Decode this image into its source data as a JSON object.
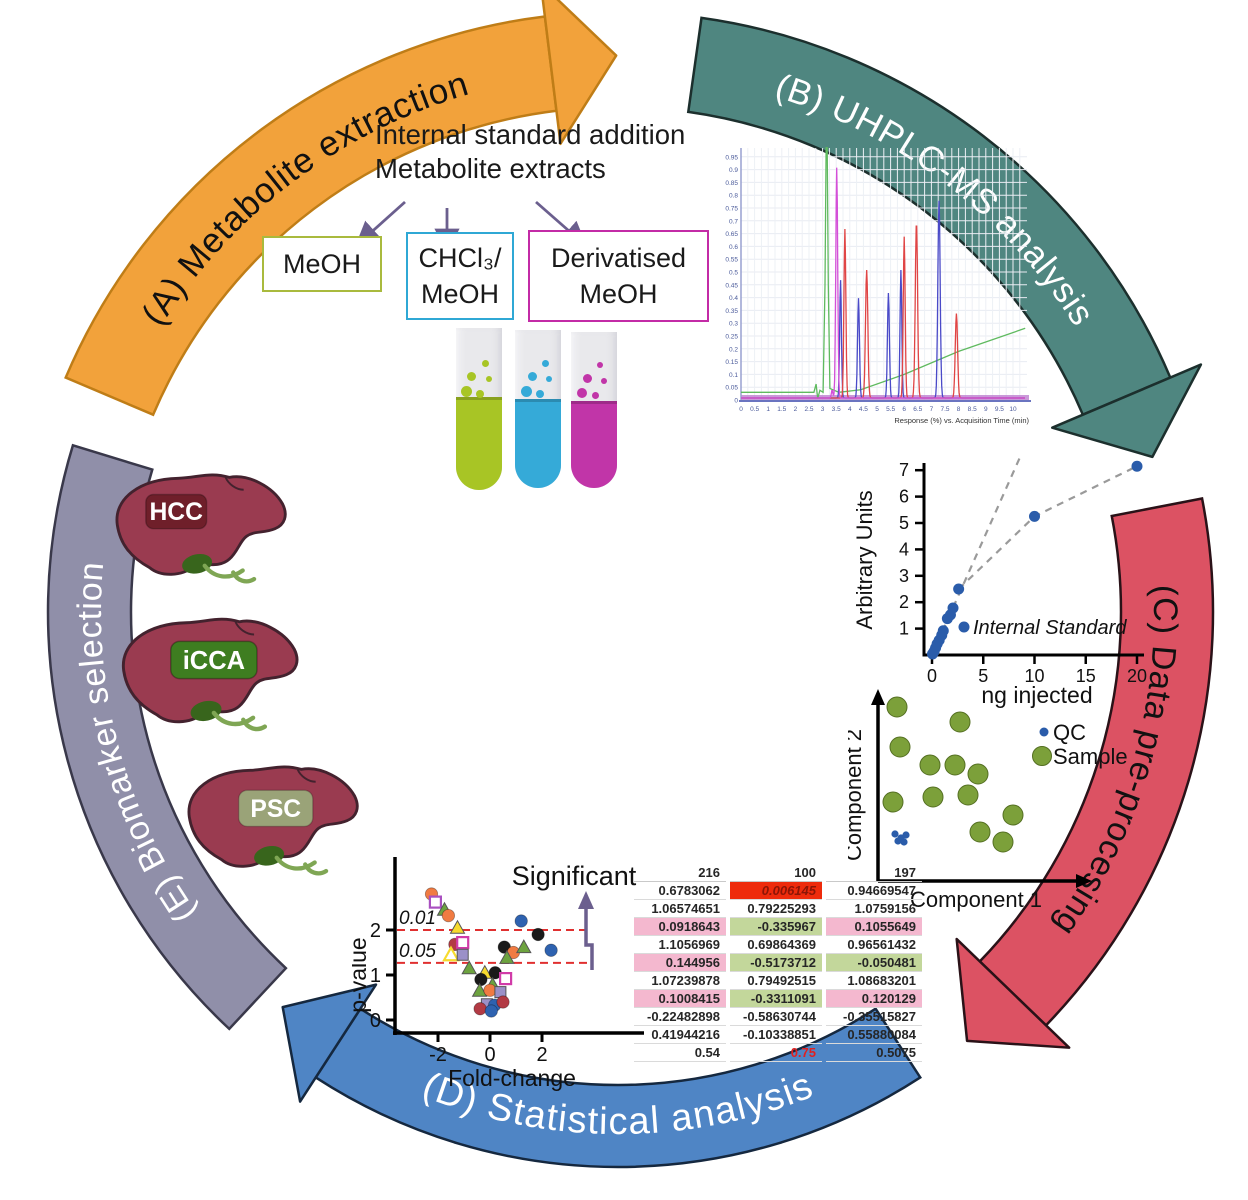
{
  "arcs": {
    "a": {
      "label": "(A) Metabolite extraction",
      "fill": "#f2a23b",
      "stroke": "#bf7d17",
      "text_color": "#111111"
    },
    "b": {
      "label": "(B) UHPLC-MS analysis",
      "fill": "#4f8680",
      "stroke": "#1c2f2d",
      "text_color": "#ffffff"
    },
    "c": {
      "label": "(C) Data pre-procesing",
      "fill": "#dc5263",
      "stroke": "#2a1218",
      "text_color": "#111111"
    },
    "d": {
      "label": "(D) Statistical analysis",
      "fill": "#4f85c5",
      "stroke": "#15283f",
      "text_color": "#ffffff"
    },
    "e": {
      "label": "(E) Biomarker selection",
      "fill": "#908fa9",
      "stroke": "#39384a",
      "text_color": "#ffffff"
    }
  },
  "extraction": {
    "heading_line1": "Internal standard addition",
    "heading_line2": "Metabolite extracts",
    "arrow_color": "#6b5f8e",
    "boxes": [
      {
        "label": "MeOH",
        "label2": "",
        "color": "#a9ba3d"
      },
      {
        "label": "CHCl₃/",
        "label2": "MeOH",
        "color": "#2fa8d5"
      },
      {
        "label": "Derivatised",
        "label2": "MeOH",
        "color": "#c32ba6"
      }
    ],
    "tubes": [
      {
        "color": "#a8c525"
      },
      {
        "color": "#35aad8"
      },
      {
        "color": "#c135a8"
      }
    ]
  },
  "livers": [
    {
      "label": "HCC",
      "badge_color": "#6f1f2a"
    },
    {
      "label": "iCCA",
      "badge_color": "#3e7d20"
    },
    {
      "label": "PSC",
      "badge_color": "#9aa378"
    }
  ],
  "chart_data": [
    {
      "id": "chromatogram",
      "type": "line",
      "xlabel": "Response (%) vs. Acquisition Time (min)",
      "xlim": [
        0,
        10.5
      ],
      "ylim": [
        0,
        1.0
      ],
      "xtick_step": 0.5,
      "ytick_step": 0.05,
      "grid": true,
      "series": [
        {
          "name": "gradient-green",
          "color": "#5fba5f",
          "points": [
            [
              0,
              0.03
            ],
            [
              2.68,
              0.03
            ],
            [
              2.76,
              0.062
            ],
            [
              2.82,
              0.006
            ],
            [
              2.9,
              0.038
            ],
            [
              3.02,
              0.03
            ],
            [
              3.09,
              0.45
            ],
            [
              3.13,
              0.985
            ],
            [
              3.17,
              0.985
            ],
            [
              3.21,
              0.45
            ],
            [
              3.27,
              0.045
            ],
            [
              3.6,
              0.03
            ],
            [
              4.4,
              0.04
            ],
            [
              6.0,
              0.1
            ],
            [
              8.0,
              0.19
            ],
            [
              10.45,
              0.28
            ]
          ]
        },
        {
          "name": "trace-blue",
          "color": "#4a4ac8",
          "peaks": [
            [
              3.66,
              0.46,
              0.045
            ],
            [
              4.32,
              0.39,
              0.05
            ],
            [
              5.42,
              0.41,
              0.05
            ],
            [
              5.88,
              0.5,
              0.045
            ],
            [
              7.28,
              0.77,
              0.06
            ]
          ]
        },
        {
          "name": "trace-red",
          "color": "#e04545",
          "peaks": [
            [
              1.7,
              0.012,
              0.04
            ],
            [
              3.82,
              0.66,
              0.05
            ],
            [
              4.62,
              0.5,
              0.06
            ],
            [
              6.0,
              0.63,
              0.05
            ],
            [
              6.45,
              0.69,
              0.06
            ],
            [
              7.92,
              0.33,
              0.06
            ]
          ]
        },
        {
          "name": "trace-magenta",
          "color": "#d44fd8",
          "peaks": [
            [
              3.35,
              0.03,
              0.04
            ],
            [
              3.52,
              0.9,
              0.05
            ]
          ]
        }
      ]
    },
    {
      "id": "calibration",
      "type": "scatter",
      "xlabel": "ng injected",
      "ylabel": "Arbitrary Units",
      "xlim": [
        0,
        21
      ],
      "ylim": [
        0,
        7.8
      ],
      "xticks": [
        0,
        5,
        10,
        15,
        20
      ],
      "yticks": [
        1,
        2,
        3,
        4,
        5,
        6,
        7
      ],
      "point_color": "#2a5caa",
      "legend": [
        {
          "label": "Internal Standard",
          "color": "#2a5caa"
        }
      ],
      "points": [
        [
          0.05,
          0.04
        ],
        [
          0.2,
          0.13
        ],
        [
          0.35,
          0.27
        ],
        [
          0.5,
          0.42
        ],
        [
          0.7,
          0.56
        ],
        [
          0.95,
          0.75
        ],
        [
          1.1,
          0.92
        ],
        [
          1.5,
          1.38
        ],
        [
          1.8,
          1.52
        ],
        [
          2.05,
          1.78
        ],
        [
          2.6,
          2.5
        ],
        [
          10,
          5.25
        ],
        [
          20,
          7.15
        ]
      ],
      "linear_line": [
        [
          0,
          0
        ],
        [
          8.6,
          7.5
        ]
      ],
      "saturation_line": [
        [
          2.6,
          2.5
        ],
        [
          10,
          5.25
        ],
        [
          20,
          7.15
        ]
      ]
    },
    {
      "id": "pca",
      "type": "scatter",
      "xlabel": "Component 1",
      "ylabel": "Component 2",
      "legend": [
        {
          "label": "QC",
          "color": "#2a5caa"
        },
        {
          "label": "Sample",
          "color": "#7ca03a"
        }
      ],
      "sample_positions": [
        [
          49,
          22
        ],
        [
          112,
          37
        ],
        [
          52,
          62
        ],
        [
          82,
          80
        ],
        [
          107,
          80
        ],
        [
          130,
          89
        ],
        [
          45,
          117
        ],
        [
          85,
          112
        ],
        [
          120,
          110
        ],
        [
          165,
          130
        ],
        [
          132,
          147
        ],
        [
          155,
          157
        ]
      ],
      "qc_positions": [
        [
          47,
          149
        ],
        [
          53,
          153
        ],
        [
          58,
          150
        ],
        [
          50,
          156
        ],
        [
          56,
          157
        ]
      ]
    },
    {
      "id": "volcano",
      "type": "scatter",
      "xlabel": "Fold-change",
      "ylabel": "p-value",
      "xticks": [
        -2,
        0,
        2
      ],
      "yticks": [
        0,
        1,
        2
      ],
      "annotation": "Significant",
      "thresholds": [
        {
          "label": "0.01",
          "p": 2.0
        },
        {
          "label": "0.05",
          "p": 1.27
        }
      ],
      "palette": {
        "orange": "#f07b42",
        "blue": "#2e62b0",
        "black": "#1a1a1a",
        "darkred": "#b23a44",
        "green": "#6da33f",
        "yellow": "#f7db2e",
        "purple": "#a94fc0",
        "magenta": "#d13ba8",
        "lilac": "#9b90c8"
      },
      "points": [
        [
          -2.25,
          2.8,
          "c",
          "orange"
        ],
        [
          -2.1,
          2.62,
          "so",
          "purple"
        ],
        [
          -1.75,
          2.45,
          "t",
          "green"
        ],
        [
          -1.6,
          2.32,
          "c",
          "orange"
        ],
        [
          -1.25,
          2.05,
          "t",
          "yellow"
        ],
        [
          1.2,
          2.2,
          "c",
          "blue"
        ],
        [
          1.85,
          1.9,
          "c",
          "black"
        ],
        [
          -1.35,
          1.68,
          "c",
          "darkred"
        ],
        [
          -1.05,
          1.72,
          "so",
          "magenta"
        ],
        [
          -1.5,
          1.45,
          "to",
          "yellow"
        ],
        [
          -1.05,
          1.45,
          "s",
          "lilac"
        ],
        [
          0.55,
          1.62,
          "c",
          "black"
        ],
        [
          0.9,
          1.5,
          "c",
          "orange"
        ],
        [
          1.3,
          1.62,
          "t",
          "green"
        ],
        [
          2.35,
          1.55,
          "c",
          "blue"
        ],
        [
          0.65,
          1.38,
          "t",
          "green"
        ],
        [
          -0.8,
          1.15,
          "t",
          "green"
        ],
        [
          -0.2,
          1.05,
          "t",
          "yellow"
        ],
        [
          0.2,
          1.05,
          "c",
          "black"
        ],
        [
          -0.35,
          0.9,
          "c",
          "black"
        ],
        [
          0.6,
          0.92,
          "so",
          "magenta"
        ],
        [
          0.1,
          0.78,
          "t",
          "green"
        ],
        [
          -0.4,
          0.65,
          "t",
          "green"
        ],
        [
          0.0,
          0.66,
          "c",
          "orange"
        ],
        [
          0.4,
          0.62,
          "s",
          "lilac"
        ],
        [
          -0.12,
          0.35,
          "s",
          "lilac"
        ],
        [
          0.18,
          0.33,
          "c",
          "blue"
        ],
        [
          0.5,
          0.4,
          "c",
          "darkred"
        ],
        [
          -0.38,
          0.25,
          "c",
          "darkred"
        ],
        [
          0.05,
          0.2,
          "c",
          "blue"
        ]
      ]
    },
    {
      "id": "results-table",
      "type": "table",
      "columns": [
        "216",
        "100",
        "197"
      ],
      "rows": [
        [
          "0.6783062",
          "0.006145",
          "0.94669547"
        ],
        [
          "1.06574651",
          "0.79225293",
          "1.0759156"
        ],
        [
          "0.0918643",
          "-0.335967",
          "0.1055649"
        ],
        [
          "1.1056969",
          "0.69864369",
          "0.96561432"
        ],
        [
          "0.144956",
          "-0.5173712",
          "-0.050481"
        ],
        [
          "1.07239878",
          "0.79492515",
          "1.08683201"
        ],
        [
          "0.1008415",
          "-0.3311091",
          "0.120129"
        ],
        [
          "-0.22482898",
          "-0.58630744",
          "-0.35515827"
        ],
        [
          "0.41944216",
          "-0.10338851",
          "0.55880084"
        ],
        [
          "0.54",
          "0.75",
          "0.5075"
        ]
      ],
      "cell_styles": [
        [
          "",
          "red",
          ""
        ],
        [
          "",
          "",
          ""
        ],
        [
          "pink",
          "green",
          "pink"
        ],
        [
          "",
          "",
          ""
        ],
        [
          "pink",
          "green",
          "green"
        ],
        [
          "",
          "",
          ""
        ],
        [
          "pink",
          "green",
          "pink"
        ],
        [
          "",
          "",
          ""
        ],
        [
          "",
          "",
          ""
        ],
        [
          "",
          "redtext",
          ""
        ]
      ]
    }
  ]
}
